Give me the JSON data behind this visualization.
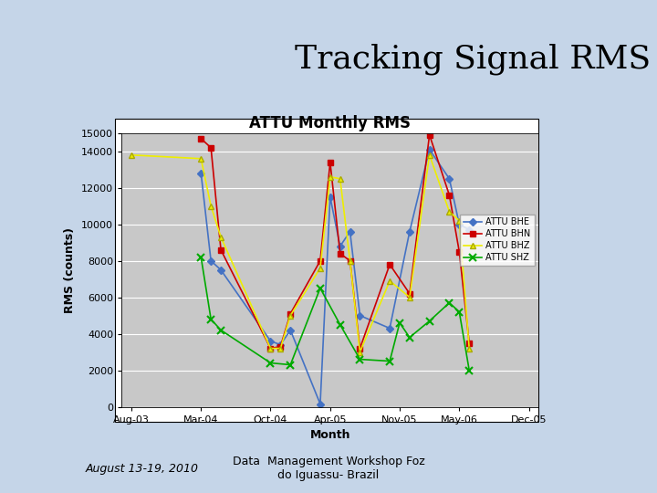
{
  "title": "Tracking Signal RMS",
  "chart_title": "ATTU Monthly RMS",
  "xlabel": "Month",
  "ylabel": "RMS (counts)",
  "background_color": "#c5d5e8",
  "plot_bg_color": "#c8c8c8",
  "chart_face_color": "#ffffff",
  "ylim": [
    0,
    15000
  ],
  "yticks": [
    0,
    2000,
    4000,
    6000,
    8000,
    10000,
    12000,
    14000,
    15000
  ],
  "xtick_labels": [
    "Aug-03",
    "Mar-04",
    "Oct-04",
    "Apr-05",
    "Nov-05",
    "May-06",
    "Dec-05"
  ],
  "xtick_pos": [
    0,
    7,
    14,
    20,
    27,
    33,
    40
  ],
  "footer_left": "August 13-19, 2010",
  "footer_right": "Data  Management Workshop Foz\ndo Iguassu- Brazil",
  "bhe_x": [
    7,
    8,
    9,
    14,
    15,
    16,
    19,
    20,
    21,
    22,
    23,
    26,
    28,
    30,
    32,
    33,
    34
  ],
  "bhe_y": [
    12800,
    8000,
    7500,
    3600,
    3400,
    4200,
    150,
    11500,
    8800,
    9600,
    5000,
    4300,
    9600,
    14100,
    12500,
    10000,
    9700
  ],
  "bhn_x": [
    7,
    8,
    9,
    14,
    15,
    16,
    19,
    20,
    21,
    22,
    23,
    26,
    28,
    30,
    32,
    33,
    34
  ],
  "bhn_y": [
    14700,
    14200,
    8600,
    3200,
    3300,
    5100,
    8000,
    13400,
    8400,
    8000,
    3200,
    7800,
    6200,
    14900,
    11600,
    8500,
    3500
  ],
  "bhz_x": [
    0,
    7,
    8,
    9,
    14,
    15,
    16,
    19,
    20,
    21,
    22,
    23,
    26,
    28,
    30,
    32,
    33,
    34
  ],
  "bhz_y": [
    13800,
    13600,
    11000,
    9300,
    3200,
    3200,
    5000,
    7600,
    12600,
    12500,
    8000,
    3000,
    6900,
    6000,
    13800,
    10700,
    10200,
    3200
  ],
  "shz_x": [
    7,
    8,
    9,
    14,
    16,
    19,
    21,
    23,
    26,
    27,
    28,
    30,
    32,
    33,
    34
  ],
  "shz_y": [
    8200,
    4800,
    4200,
    2400,
    2300,
    6500,
    4500,
    2600,
    2500,
    4600,
    3800,
    4700,
    5700,
    5200,
    2000
  ],
  "color_bhe": "#4472c4",
  "color_bhn": "#cc0000",
  "color_bhz": "#eeee00",
  "color_shz": "#00aa00",
  "title_fontsize": 26,
  "chart_title_fontsize": 12,
  "axis_label_fontsize": 9,
  "tick_fontsize": 8,
  "legend_fontsize": 7,
  "footer_fontsize": 9
}
